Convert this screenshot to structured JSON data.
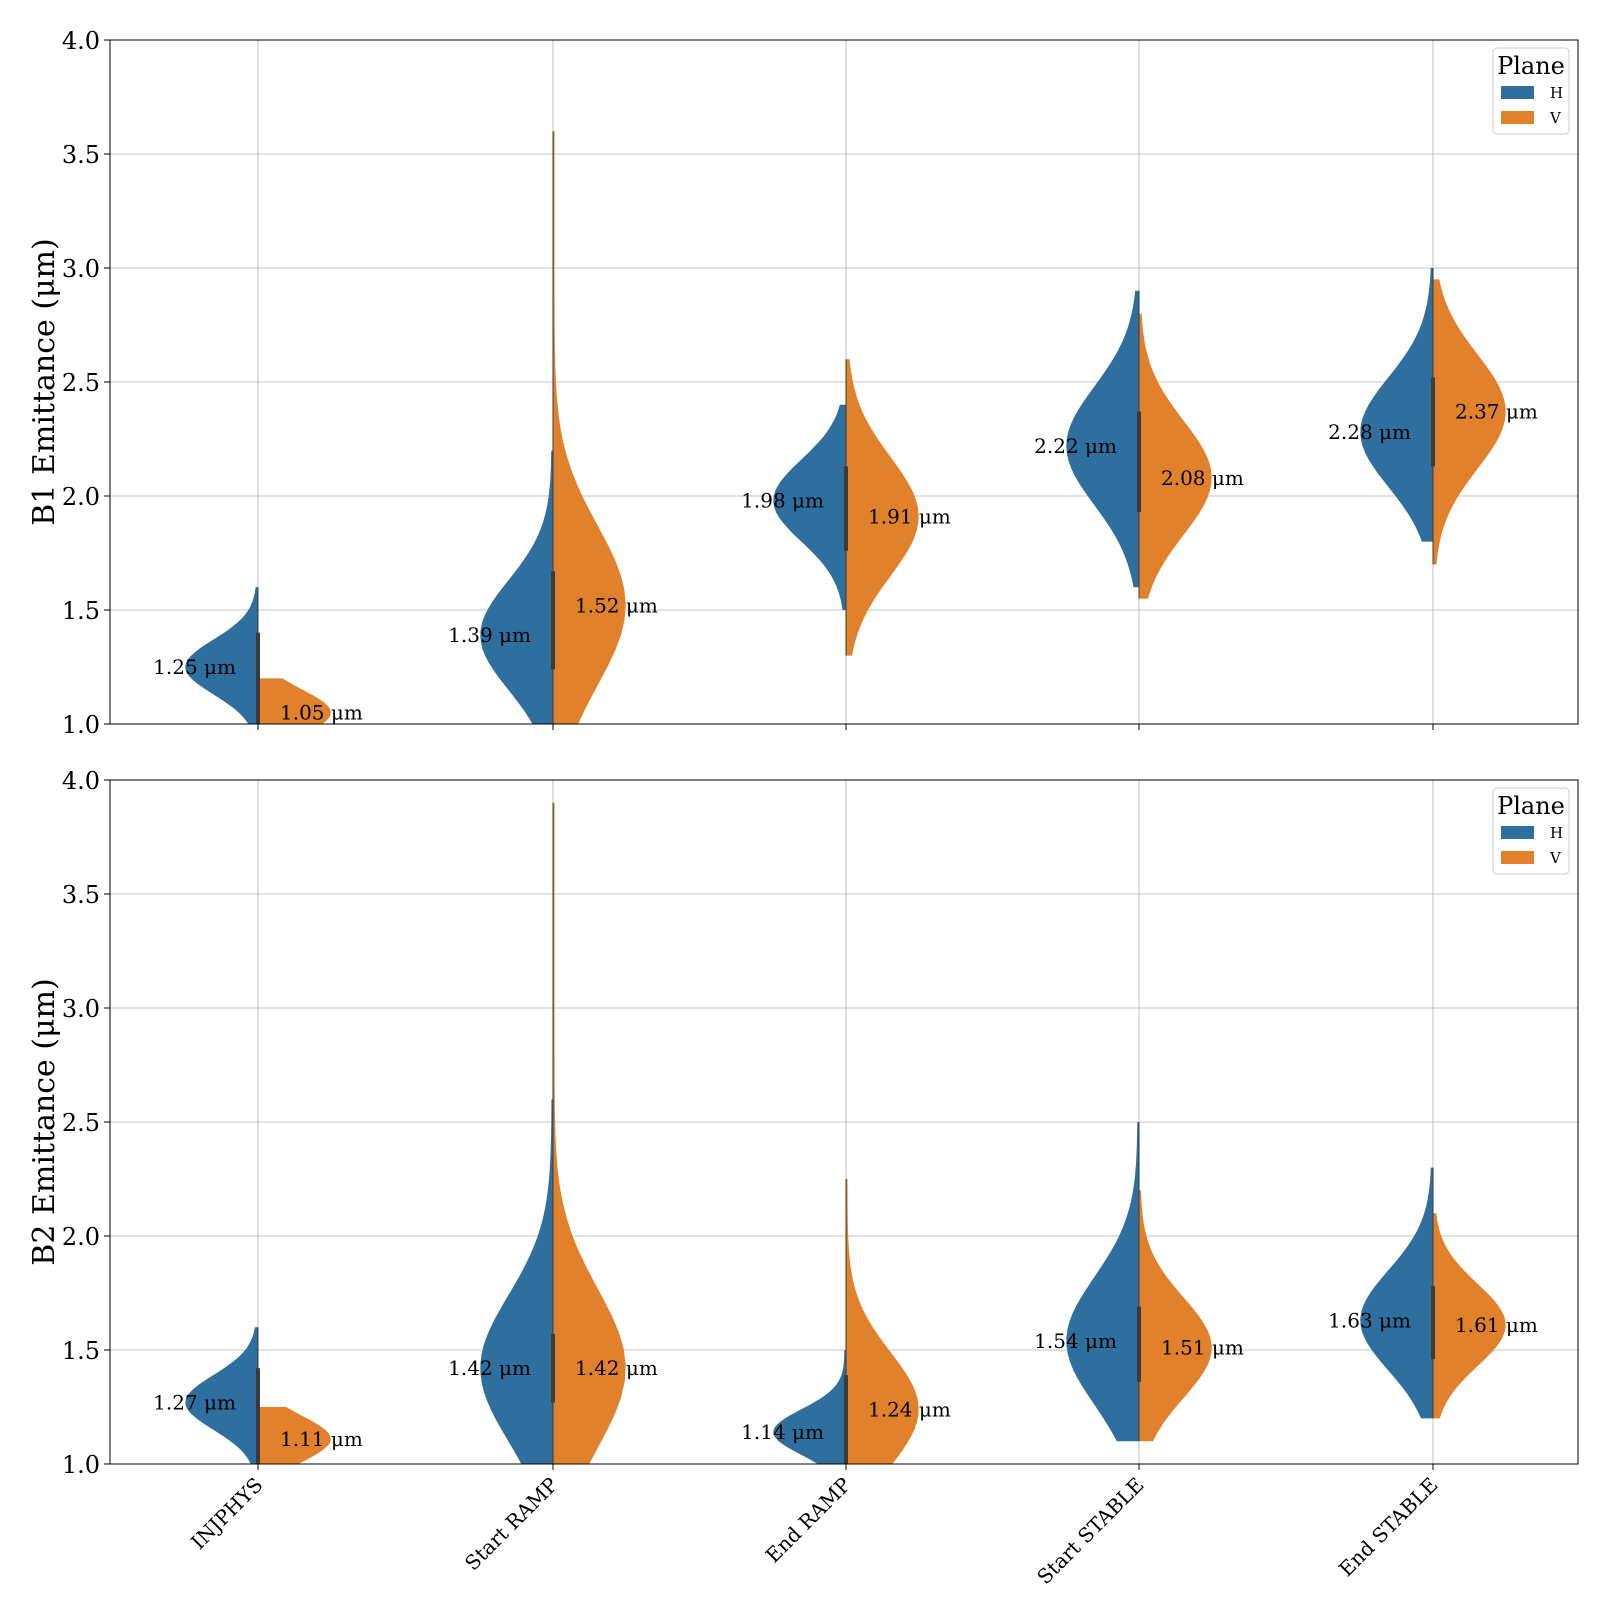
{
  "chart_data": [
    {
      "type": "violin",
      "ylabel": "B1 Emittance (μm)",
      "ylim": [
        1.0,
        4.0
      ],
      "yticks": [
        "1.0",
        "1.5",
        "2.0",
        "2.5",
        "3.0",
        "3.5",
        "4.0"
      ],
      "categories": [
        "INJPHYS",
        "Start RAMP",
        "End RAMP",
        "Start STABLE",
        "End STABLE"
      ],
      "show_xticklabels": false,
      "grid": true,
      "legend": {
        "title": "Plane",
        "position": "top-right",
        "entries": [
          "H",
          "V"
        ]
      },
      "series": [
        {
          "name": "H",
          "color": "#2f6fa0",
          "medians": [
            1.25,
            1.39,
            1.98,
            2.22,
            2.28
          ],
          "median_labels": [
            "1.25 μm",
            "1.39 μm",
            "1.98 μm",
            "2.22 μm",
            "2.28 μm"
          ],
          "range": [
            [
              1.0,
              1.6
            ],
            [
              1.0,
              2.2
            ],
            [
              1.5,
              2.4
            ],
            [
              1.6,
              2.9
            ],
            [
              1.8,
              3.0
            ]
          ]
        },
        {
          "name": "V",
          "color": "#e1812c",
          "medians": [
            1.05,
            1.52,
            1.91,
            2.08,
            2.37
          ],
          "median_labels": [
            "1.05 μm",
            "1.52 μm",
            "1.91 μm",
            "2.08 μm",
            "2.37 μm"
          ],
          "range": [
            [
              1.0,
              1.2
            ],
            [
              1.0,
              3.6
            ],
            [
              1.3,
              2.6
            ],
            [
              1.55,
              2.8
            ],
            [
              1.7,
              2.95
            ]
          ]
        }
      ]
    },
    {
      "type": "violin",
      "ylabel": "B2 Emittance (μm)",
      "ylim": [
        1.0,
        4.0
      ],
      "yticks": [
        "1.0",
        "1.5",
        "2.0",
        "2.5",
        "3.0",
        "3.5",
        "4.0"
      ],
      "categories": [
        "INJPHYS",
        "Start RAMP",
        "End RAMP",
        "Start STABLE",
        "End STABLE"
      ],
      "show_xticklabels": true,
      "grid": true,
      "legend": {
        "title": "Plane",
        "position": "top-right",
        "entries": [
          "H",
          "V"
        ]
      },
      "series": [
        {
          "name": "H",
          "color": "#2f6fa0",
          "medians": [
            1.27,
            1.42,
            1.14,
            1.54,
            1.63
          ],
          "median_labels": [
            "1.27 μm",
            "1.42 μm",
            "1.14 μm",
            "1.54 μm",
            "1.63 μm"
          ],
          "range": [
            [
              1.0,
              1.6
            ],
            [
              1.0,
              2.6
            ],
            [
              1.0,
              1.5
            ],
            [
              1.1,
              2.5
            ],
            [
              1.2,
              2.3
            ]
          ]
        },
        {
          "name": "V",
          "color": "#e1812c",
          "medians": [
            1.11,
            1.42,
            1.24,
            1.51,
            1.61
          ],
          "median_labels": [
            "1.11 μm",
            "1.42 μm",
            "1.24 μm",
            "1.51 μm",
            "1.61 μm"
          ],
          "range": [
            [
              1.0,
              1.25
            ],
            [
              1.0,
              3.9
            ],
            [
              1.0,
              2.25
            ],
            [
              1.1,
              2.2
            ],
            [
              1.2,
              2.1
            ]
          ]
        }
      ]
    }
  ]
}
